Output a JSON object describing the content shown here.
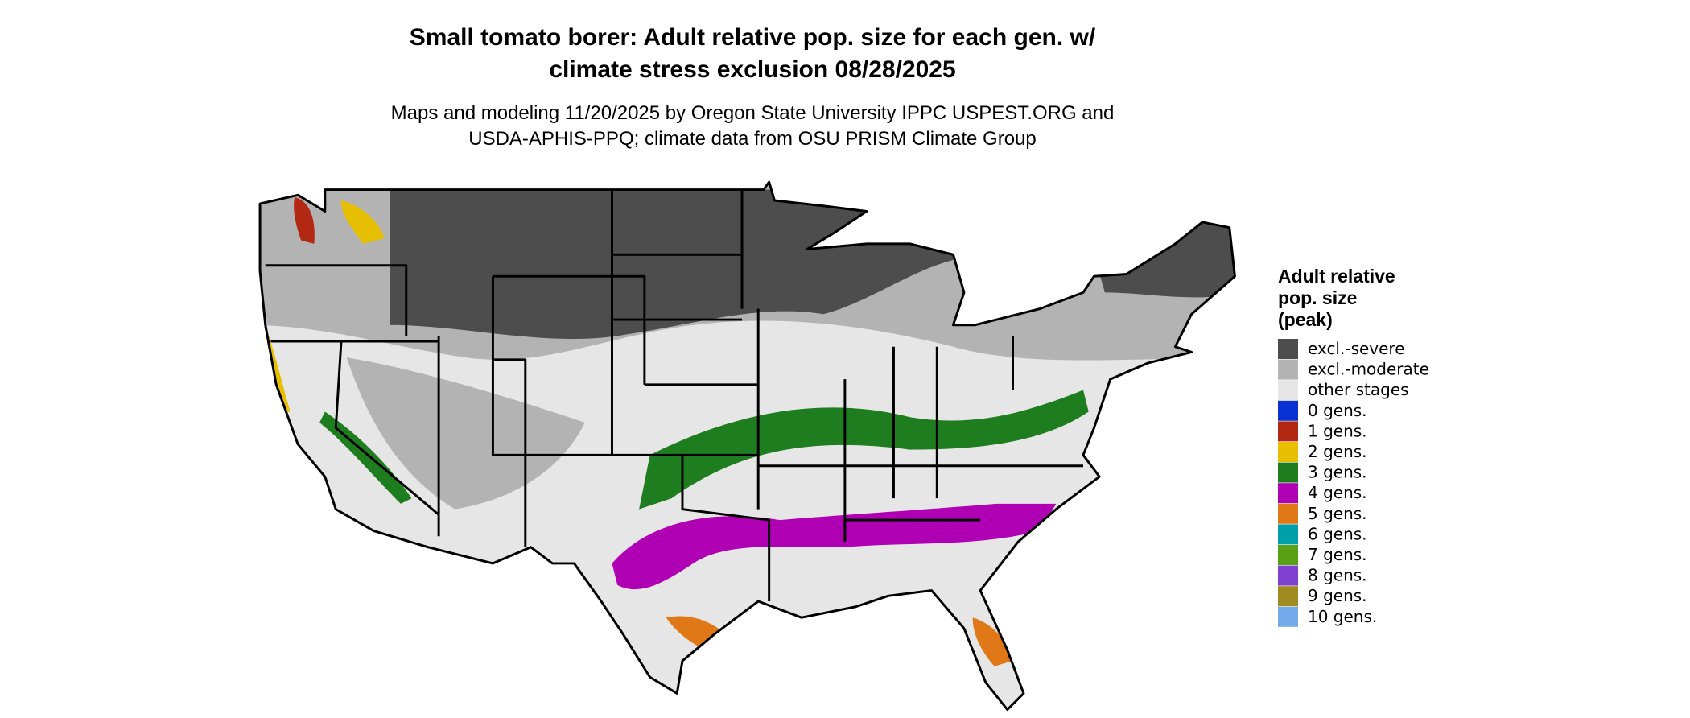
{
  "header": {
    "title_lines": [
      "Small tomato borer: Adult relative pop. size for each gen. w/",
      "climate stress exclusion 08/28/2025"
    ],
    "subtitle_lines": [
      "Maps and modeling 11/20/2025 by Oregon State University IPPC USPEST.ORG and",
      "USDA-APHIS-PPQ; climate data from OSU PRISM Climate Group"
    ]
  },
  "legend": {
    "title_lines": [
      "Adult relative",
      "pop. size",
      "(peak)"
    ],
    "items": [
      {
        "label": "excl.-severe",
        "color": "#4d4d4d"
      },
      {
        "label": "excl.-moderate",
        "color": "#b3b3b3"
      },
      {
        "label": "other stages",
        "color": "#e6e6e6"
      },
      {
        "label": "0 gens.",
        "color": "#0a32d2"
      },
      {
        "label": "1 gens.",
        "color": "#b22812"
      },
      {
        "label": "2 gens.",
        "color": "#e6c000"
      },
      {
        "label": "3 gens.",
        "color": "#1e7d1e"
      },
      {
        "label": "4 gens.",
        "color": "#b000b4"
      },
      {
        "label": "5 gens.",
        "color": "#e07818"
      },
      {
        "label": "6 gens.",
        "color": "#00a0a8"
      },
      {
        "label": "7 gens.",
        "color": "#5aa014"
      },
      {
        "label": "8 gens.",
        "color": "#8040d0"
      },
      {
        "label": "9 gens.",
        "color": "#a08a22"
      },
      {
        "label": "10 gens.",
        "color": "#74aaea"
      }
    ]
  }
}
